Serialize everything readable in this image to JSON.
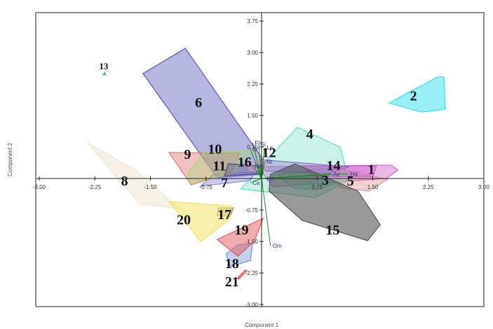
{
  "chart_data": {
    "type": "scatter",
    "xlabel": "Component 1",
    "ylabel": "Component 2",
    "xlim": [
      -3.0,
      3.0
    ],
    "ylim": [
      -3.0,
      4.0
    ],
    "grid": false,
    "x_ticks": [
      {
        "value": -3.0,
        "label": "-3.00"
      },
      {
        "value": -2.25,
        "label": "-2.25"
      },
      {
        "value": -1.5,
        "label": "-1.50"
      },
      {
        "value": -0.75,
        "label": "-0.75"
      },
      {
        "value": 0.75,
        "label": "0.75"
      },
      {
        "value": 1.5,
        "label": "1.50"
      },
      {
        "value": 2.25,
        "label": "2.25"
      },
      {
        "value": 3.0,
        "label": "3.00"
      }
    ],
    "y_ticks": [
      {
        "value": 3.75,
        "label": "3.75"
      },
      {
        "value": 3.0,
        "label": "3.00"
      },
      {
        "value": 2.25,
        "label": "2.25"
      },
      {
        "value": 1.5,
        "label": "1.50"
      },
      {
        "value": 0.75,
        "label": "0.75"
      },
      {
        "value": -0.75,
        "label": "-0.75"
      },
      {
        "value": -1.5,
        "label": "-1.50"
      },
      {
        "value": -2.25,
        "label": "-2.25"
      },
      {
        "value": -3.0,
        "label": "-3.00"
      }
    ],
    "groups": [
      {
        "label": "1",
        "color": "#cc66cc",
        "opacity": 0.45,
        "label_at": [
          1.48,
          0.11
        ],
        "hull": [
          [
            -0.05,
            0.28
          ],
          [
            1.75,
            0.32
          ],
          [
            1.84,
            0.2
          ],
          [
            1.68,
            0.0
          ],
          [
            0.15,
            -0.2
          ]
        ]
      },
      {
        "label": "2",
        "color": "#33e0ee",
        "opacity": 0.5,
        "label_at": [
          2.05,
          1.86
        ],
        "hull": [
          [
            1.72,
            1.8
          ],
          [
            2.38,
            2.42
          ],
          [
            2.46,
            2.42
          ],
          [
            2.48,
            1.65
          ],
          [
            2.16,
            1.58
          ]
        ]
      },
      {
        "label": "3",
        "color": "#33cc99",
        "opacity": 0.35,
        "label_at": [
          0.86,
          -0.15
        ],
        "hull": [
          [
            0.2,
            0.1
          ],
          [
            0.95,
            0.25
          ],
          [
            1.08,
            -0.08
          ],
          [
            0.72,
            -0.27
          ],
          [
            0.42,
            -0.22
          ]
        ]
      },
      {
        "label": "4",
        "color": "#66ddbb",
        "opacity": 0.35,
        "label_at": [
          0.65,
          0.95
        ],
        "hull": [
          [
            -0.28,
            -0.25
          ],
          [
            0.48,
            1.22
          ],
          [
            1.06,
            0.75
          ],
          [
            1.18,
            -0.05
          ],
          [
            0.72,
            -0.45
          ]
        ]
      },
      {
        "label": "5",
        "color": "#d9999a",
        "opacity": 0.45,
        "label_at": [
          1.2,
          -0.17
        ],
        "hull": [
          [
            0.9,
            0.3
          ],
          [
            1.7,
            -0.02
          ],
          [
            1.45,
            -0.3
          ],
          [
            1.06,
            -0.22
          ]
        ]
      },
      {
        "label": "6",
        "color": "#5c5cb8",
        "opacity": 0.45,
        "label_at": [
          -0.85,
          1.7
        ],
        "hull": [
          [
            -1.6,
            2.5
          ],
          [
            -1.03,
            3.1
          ],
          [
            0.02,
            0.45
          ],
          [
            0.02,
            0.1
          ],
          [
            -0.6,
            0.02
          ]
        ]
      },
      {
        "label": "7",
        "color": "#8a8ad8",
        "opacity": 0.45,
        "label_at": [
          -0.5,
          -0.21
        ],
        "hull": [
          [
            -0.65,
            0.1
          ],
          [
            -0.1,
            0.15
          ],
          [
            -0.15,
            -0.05
          ],
          [
            -0.82,
            -0.18
          ]
        ]
      },
      {
        "label": "8",
        "color": "#f0e6d6",
        "opacity": 0.6,
        "label_at": [
          -1.85,
          -0.17
        ],
        "hull": [
          [
            -2.35,
            0.85
          ],
          [
            -1.7,
            0.2
          ],
          [
            -1.1,
            -0.72
          ],
          [
            -1.65,
            -0.6
          ]
        ]
      },
      {
        "label": "9",
        "color": "#e07878",
        "opacity": 0.45,
        "label_at": [
          -1.0,
          0.47
        ],
        "hull": [
          [
            -1.25,
            0.62
          ],
          [
            -0.3,
            0.6
          ],
          [
            -0.4,
            0.15
          ],
          [
            -0.95,
            -0.15
          ]
        ]
      },
      {
        "label": "10",
        "color": "#99e066",
        "opacity": 0.3,
        "label_at": [
          -0.63,
          0.59
        ],
        "hull": [
          [
            -0.78,
            0.62
          ],
          [
            -0.12,
            0.65
          ],
          [
            -0.4,
            0.12
          ],
          [
            -0.95,
            -0.1
          ],
          [
            -1.0,
            0.1
          ]
        ]
      },
      {
        "label": "11",
        "color": "#4a4a8a",
        "opacity": 0.35,
        "label_at": [
          -0.57,
          0.19
        ],
        "hull": [
          [
            -0.45,
            0.35
          ],
          [
            0.0,
            0.3
          ],
          [
            0.0,
            0.12
          ],
          [
            -0.5,
            0.06
          ]
        ]
      },
      {
        "label": "12",
        "color": "#8a6acc",
        "opacity": 0.35,
        "label_at": [
          0.1,
          0.51
        ],
        "hull": [
          [
            -0.02,
            0.45
          ],
          [
            1.18,
            0.28
          ],
          [
            0.9,
            0.12
          ],
          [
            0.05,
            0.18
          ]
        ]
      },
      {
        "label": "13",
        "color": "#4fae7c",
        "opacity": 0.5,
        "label_at": [
          -2.13,
          2.6
        ],
        "hull": [
          [
            -2.14,
            2.47
          ],
          [
            -2.1,
            2.47
          ],
          [
            -2.12,
            2.52
          ]
        ]
      },
      {
        "label": "14",
        "color": "#cc55cc",
        "opacity": 0.4,
        "label_at": [
          0.97,
          0.2
        ],
        "hull": [
          [
            0.55,
            0.3
          ],
          [
            1.55,
            0.3
          ],
          [
            1.5,
            0.05
          ],
          [
            0.7,
            0.05
          ]
        ]
      },
      {
        "label": "15",
        "color": "#555555",
        "opacity": 0.6,
        "label_at": [
          0.96,
          -1.33
        ],
        "hull": [
          [
            0.12,
            0.1
          ],
          [
            0.45,
            0.35
          ],
          [
            1.3,
            -0.3
          ],
          [
            1.6,
            -1.1
          ],
          [
            1.43,
            -1.48
          ],
          [
            0.55,
            -1.0
          ],
          [
            0.1,
            -0.3
          ]
        ]
      },
      {
        "label": "16",
        "color": "#dd99bb",
        "opacity": 0.4,
        "label_at": [
          -0.23,
          0.28
        ],
        "hull": [
          [
            -0.2,
            0.38
          ],
          [
            0.05,
            0.42
          ],
          [
            0.08,
            0.22
          ],
          [
            -0.15,
            0.18
          ]
        ]
      },
      {
        "label": "17",
        "color": "#999966",
        "opacity": 0.4,
        "label_at": [
          -0.5,
          -0.97
        ],
        "hull": [
          [
            -0.58,
            -0.7
          ],
          [
            -0.38,
            -0.7
          ],
          [
            -0.42,
            -0.9
          ],
          [
            -0.6,
            -0.88
          ]
        ]
      },
      {
        "label": "18",
        "color": "#7799dd",
        "opacity": 0.45,
        "label_at": [
          -0.4,
          -2.13
        ],
        "hull": [
          [
            -0.32,
            -1.58
          ],
          [
            -0.12,
            -1.55
          ],
          [
            -0.15,
            -1.95
          ],
          [
            -0.42,
            -2.1
          ],
          [
            -0.48,
            -1.8
          ]
        ]
      },
      {
        "label": "19",
        "color": "#e05b5b",
        "opacity": 0.5,
        "label_at": [
          -0.27,
          -1.33
        ],
        "hull": [
          [
            -0.6,
            -1.45
          ],
          [
            0.02,
            -0.95
          ],
          [
            -0.1,
            -1.5
          ],
          [
            -0.32,
            -1.85
          ]
        ]
      },
      {
        "label": "20",
        "color": "#f3e16a",
        "opacity": 0.55,
        "label_at": [
          -1.05,
          -1.09
        ],
        "hull": [
          [
            -1.25,
            -0.55
          ],
          [
            -0.42,
            -0.65
          ],
          [
            -0.42,
            -0.95
          ],
          [
            -0.82,
            -1.5
          ]
        ]
      },
      {
        "label": "21",
        "color": "#e05b5b",
        "opacity": 0.7,
        "label_at": [
          -0.4,
          -2.57
        ],
        "hull": [
          [
            -0.22,
            -2.18
          ],
          [
            -0.2,
            -2.2
          ],
          [
            -0.31,
            -2.4
          ],
          [
            -0.33,
            -2.38
          ]
        ]
      }
    ],
    "loadings": [
      {
        "label": "Fh",
        "x": -0.12,
        "y": 0.85
      },
      {
        "label": "Si",
        "x": -0.04,
        "y": 0.82
      },
      {
        "label": "Lc",
        "x": 0.04,
        "y": 0.73
      },
      {
        "label": "Cr",
        "x": -0.15,
        "y": 0.7
      },
      {
        "label": "Nt",
        "x": 0.04,
        "y": 0.4
      },
      {
        "label": "Rd",
        "x": -0.12,
        "y": 0.3
      },
      {
        "label": "Ae",
        "x": 0.94,
        "y": 0.11
      },
      {
        "label": "Hd",
        "x": 1.17,
        "y": 0.11
      },
      {
        "label": "Ca",
        "x": -0.15,
        "y": -0.1
      },
      {
        "label": "Kn",
        "x": 0.04,
        "y": 0.0
      },
      {
        "label": "Om",
        "x": 0.12,
        "y": -1.6
      }
    ]
  }
}
